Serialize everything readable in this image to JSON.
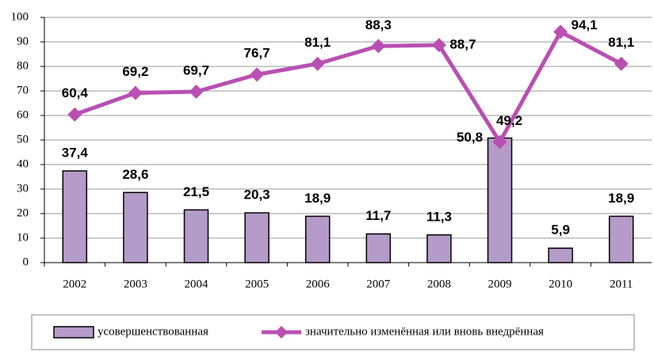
{
  "chart_data": {
    "type": "bar",
    "categories": [
      "2002",
      "2003",
      "2004",
      "2005",
      "2006",
      "2007",
      "2008",
      "2009",
      "2010",
      "2011"
    ],
    "series": [
      {
        "name": "усовершенствованная",
        "type": "bar",
        "color": "#b49bc9",
        "values": [
          37.4,
          28.6,
          21.5,
          20.3,
          18.9,
          11.7,
          11.3,
          50.8,
          5.9,
          18.9
        ],
        "value_labels": [
          "37,4",
          "28,6",
          "21,5",
          "20,3",
          "18,9",
          "11,7",
          "11,3",
          "50,8",
          "5,9",
          "18,9"
        ]
      },
      {
        "name": "значительно изменённая или вновь внедрённая",
        "type": "line",
        "color": "#b94fb2",
        "values": [
          60.4,
          69.2,
          69.7,
          76.7,
          81.1,
          88.3,
          88.7,
          49.2,
          94.1,
          81.1
        ],
        "value_labels": [
          "60,4",
          "69,2",
          "69,7",
          "76,7",
          "81,1",
          "88,3",
          "88,7",
          "49,2",
          "94,1",
          "81,1"
        ]
      }
    ],
    "ylim": [
      0,
      100
    ],
    "yticks": [
      0,
      10,
      20,
      30,
      40,
      50,
      60,
      70,
      80,
      90,
      100
    ],
    "grid": true,
    "legend": "bottom"
  }
}
